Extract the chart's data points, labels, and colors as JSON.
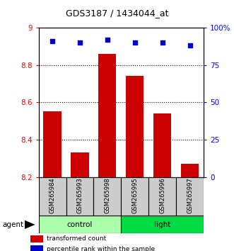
{
  "title": "GDS3187 / 1434044_at",
  "samples": [
    "GSM265984",
    "GSM265993",
    "GSM265998",
    "GSM265995",
    "GSM265996",
    "GSM265997"
  ],
  "bar_values": [
    8.55,
    8.33,
    8.86,
    8.74,
    8.54,
    8.27
  ],
  "percentile_values": [
    91,
    90,
    92,
    90,
    90,
    88
  ],
  "ylim_left": [
    8.2,
    9.0
  ],
  "ylim_right": [
    0,
    100
  ],
  "yticks_left": [
    8.2,
    8.4,
    8.6,
    8.8,
    9.0
  ],
  "yticks_right": [
    0,
    25,
    50,
    75,
    100
  ],
  "ytick_labels_right": [
    "0",
    "25",
    "50",
    "75",
    "100%"
  ],
  "yticks_left_labels": [
    "8.2",
    "8.4",
    "8.6",
    "8.8",
    "9"
  ],
  "hlines": [
    8.4,
    8.6,
    8.8
  ],
  "bar_color": "#cc0000",
  "point_color": "#0000cc",
  "groups": [
    {
      "label": "control",
      "color": "#aaffaa",
      "start": 0,
      "end": 2
    },
    {
      "label": "light",
      "color": "#00dd44",
      "start": 3,
      "end": 5
    }
  ],
  "sample_box_color": "#cccccc",
  "legend_red_label": "transformed count",
  "legend_blue_label": "percentile rank within the sample",
  "bar_bottom": 8.2,
  "bar_width": 0.65
}
